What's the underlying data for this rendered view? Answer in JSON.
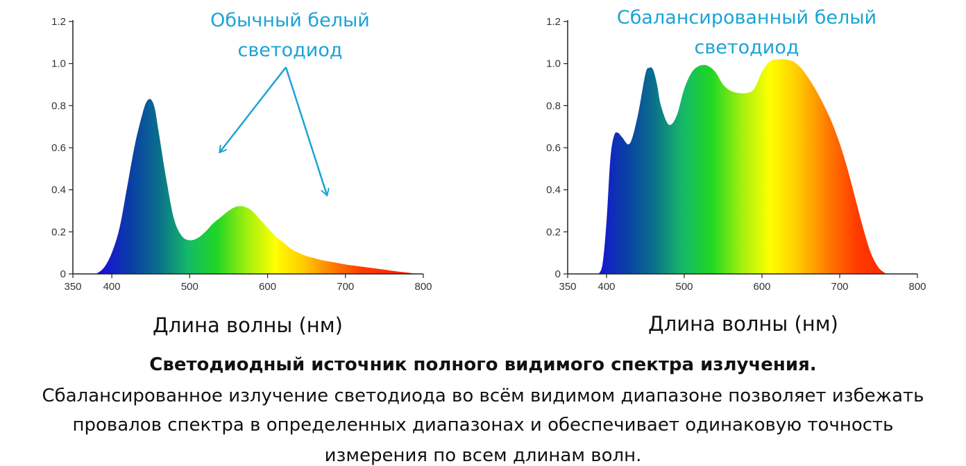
{
  "chart_data": [
    {
      "type": "area",
      "title": "",
      "xlabel": "Длина волны (нм)",
      "ylabel": "",
      "xlim": [
        350,
        800
      ],
      "ylim": [
        0,
        1.2
      ],
      "xticks": [
        350,
        400,
        500,
        600,
        700,
        800
      ],
      "yticks": [
        "0",
        "0.2",
        "0.4",
        "0.6",
        "0.8",
        "1.0",
        "1.2"
      ],
      "grid": false,
      "annotation": {
        "lines": [
          "Обычный белый",
          "светодиод"
        ]
      },
      "series": [
        {
          "x": [
            380,
            390,
            400,
            410,
            420,
            430,
            440,
            445,
            450,
            455,
            460,
            470,
            480,
            490,
            500,
            510,
            520,
            530,
            540,
            550,
            560,
            570,
            580,
            590,
            600,
            610,
            620,
            630,
            640,
            650,
            660,
            670,
            680,
            690,
            700,
            720,
            740,
            760,
            780,
            790
          ],
          "y": [
            0,
            0.03,
            0.1,
            0.22,
            0.42,
            0.62,
            0.77,
            0.82,
            0.83,
            0.79,
            0.68,
            0.45,
            0.26,
            0.18,
            0.16,
            0.17,
            0.2,
            0.24,
            0.27,
            0.3,
            0.32,
            0.32,
            0.3,
            0.26,
            0.22,
            0.18,
            0.15,
            0.12,
            0.1,
            0.085,
            0.075,
            0.065,
            0.058,
            0.052,
            0.045,
            0.035,
            0.025,
            0.015,
            0.006,
            0
          ]
        }
      ]
    },
    {
      "type": "area",
      "title": "",
      "xlabel": "Длина волны (нм)",
      "ylabel": "",
      "xlim": [
        350,
        800
      ],
      "ylim": [
        0,
        1.2
      ],
      "xticks": [
        350,
        400,
        500,
        600,
        700,
        800
      ],
      "yticks": [
        "0",
        "0.2",
        "0.4",
        "0.6",
        "0.8",
        "1.0",
        "1.2"
      ],
      "grid": false,
      "annotation": {
        "lines": [
          "Сбалансированный белый",
          "светодиод"
        ]
      },
      "series": [
        {
          "x": [
            390,
            395,
            400,
            405,
            410,
            415,
            420,
            430,
            440,
            450,
            455,
            460,
            465,
            470,
            480,
            490,
            500,
            510,
            520,
            530,
            540,
            550,
            560,
            570,
            580,
            590,
            600,
            610,
            620,
            630,
            640,
            650,
            660,
            670,
            680,
            690,
            700,
            710,
            720,
            730,
            740,
            750,
            760
          ],
          "y": [
            0,
            0.05,
            0.25,
            0.55,
            0.66,
            0.67,
            0.65,
            0.62,
            0.75,
            0.95,
            0.98,
            0.97,
            0.9,
            0.8,
            0.71,
            0.75,
            0.88,
            0.96,
            0.99,
            0.99,
            0.96,
            0.9,
            0.87,
            0.86,
            0.86,
            0.88,
            0.96,
            1.01,
            1.02,
            1.02,
            1.01,
            0.98,
            0.93,
            0.87,
            0.8,
            0.72,
            0.62,
            0.5,
            0.36,
            0.22,
            0.1,
            0.03,
            0
          ]
        }
      ]
    }
  ],
  "caption": {
    "title": "Светодиодный источник полного видимого спектра излучения.",
    "line1": "Сбалансированное излучение светодиода во всём видимом диапазоне позволяет избежать",
    "line2": "провалов спектра в определенных диапазонах и обеспечивает одинаковую точность",
    "line3": "измерения по всем длинам волн."
  },
  "colors": {
    "annotation": "#1aa3d6",
    "spectrum": [
      "#1a0fd6",
      "#0a3ca8",
      "#0a6e8c",
      "#15b86a",
      "#20d624",
      "#9fef0f",
      "#ffff00",
      "#ffc800",
      "#ff7a00",
      "#ff3a00",
      "#ff2a00"
    ]
  }
}
